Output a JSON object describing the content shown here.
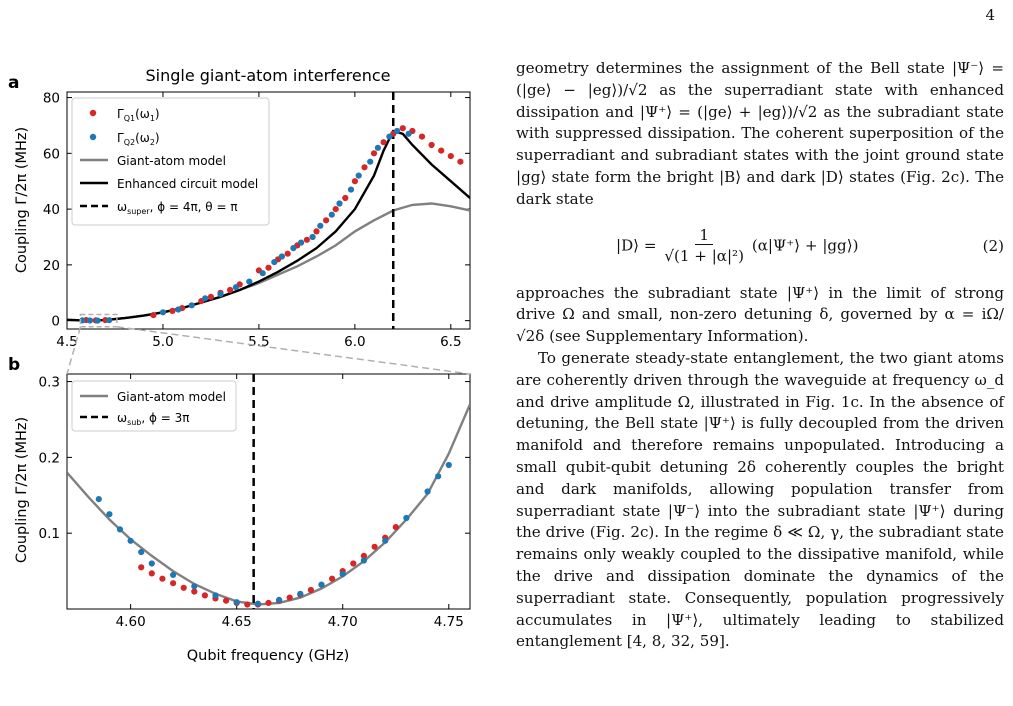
{
  "page_number": "4",
  "figure": {
    "panel_a": {
      "label": "a",
      "title": "Single giant-atom interference",
      "ylabel": "Coupling Γ/2π (MHz)",
      "legend": [
        "Γ_Q1(ω_1)",
        "Γ_Q2(ω_2)",
        "Giant-atom model",
        "Enhanced circuit model",
        "ω_super, ϕ = 4π, θ = π"
      ]
    },
    "panel_b": {
      "label": "b",
      "ylabel": "Coupling Γ/2π (MHz)",
      "xlabel": "Qubit frequency (GHz)",
      "legend": [
        "Giant-atom model",
        "ω_sub, ϕ = 3π"
      ]
    },
    "colors": {
      "q1": "#d62728",
      "q2": "#1f77b4",
      "giant_atom": "#808080",
      "enhanced": "#000000"
    }
  },
  "chart_data": [
    {
      "type": "scatter",
      "title": "Single giant-atom interference",
      "xlabel": "",
      "ylabel": "Coupling Γ/2π (MHz)",
      "xlim": [
        4.5,
        6.6
      ],
      "ylim": [
        -3,
        82
      ],
      "xticks": [
        4.5,
        5.0,
        5.5,
        6.0,
        6.5
      ],
      "yticks": [
        0,
        20,
        40,
        60,
        80
      ],
      "legend_position": "top-left",
      "series": [
        {
          "name": "Γ_Q1(ω_1)",
          "kind": "points",
          "x": [
            4.6,
            4.65,
            4.7,
            4.95,
            5.05,
            5.1,
            5.2,
            5.25,
            5.3,
            5.35,
            5.4,
            5.5,
            5.55,
            5.6,
            5.65,
            5.7,
            5.75,
            5.8,
            5.85,
            5.9,
            5.95,
            6.0,
            6.05,
            6.1,
            6.15,
            6.2,
            6.25,
            6.3,
            6.35,
            6.4,
            6.45,
            6.5,
            6.55
          ],
          "y": [
            0.2,
            0.1,
            0.2,
            2,
            3.5,
            4.5,
            7,
            8.5,
            10,
            11,
            13,
            18,
            19,
            22,
            24,
            27,
            29,
            32,
            36,
            40,
            44,
            50,
            55,
            60,
            64,
            67,
            69,
            68,
            66,
            63,
            61,
            59,
            57
          ]
        },
        {
          "name": "Γ_Q2(ω_2)",
          "kind": "points",
          "x": [
            4.58,
            4.62,
            4.66,
            4.72,
            5.0,
            5.08,
            5.15,
            5.22,
            5.3,
            5.38,
            5.45,
            5.52,
            5.58,
            5.62,
            5.68,
            5.72,
            5.78,
            5.82,
            5.88,
            5.92,
            5.98,
            6.02,
            6.08,
            6.12,
            6.18,
            6.22,
            6.28
          ],
          "y": [
            0.1,
            0.05,
            0.01,
            0.15,
            3,
            4,
            5.5,
            8,
            9.5,
            12,
            14,
            17,
            21,
            23,
            26,
            28,
            30,
            34,
            38,
            42,
            47,
            52,
            57,
            62,
            66,
            68,
            67
          ]
        },
        {
          "name": "Giant-atom model",
          "kind": "line",
          "x": [
            4.5,
            4.6,
            4.7,
            4.8,
            4.9,
            5.0,
            5.1,
            5.2,
            5.3,
            5.4,
            5.5,
            5.6,
            5.7,
            5.8,
            5.9,
            6.0,
            6.1,
            6.2,
            6.3,
            6.4,
            6.5,
            6.6
          ],
          "y": [
            0.3,
            0.02,
            0.2,
            0.9,
            1.8,
            3,
            4.5,
            6.5,
            8.5,
            11,
            13.5,
            16.5,
            19.5,
            23,
            27,
            32,
            36,
            39.5,
            41.5,
            42,
            41,
            39.5
          ]
        },
        {
          "name": "Enhanced circuit model",
          "kind": "line",
          "x": [
            4.5,
            4.6,
            4.7,
            4.8,
            4.9,
            5.0,
            5.1,
            5.2,
            5.3,
            5.4,
            5.5,
            5.6,
            5.7,
            5.8,
            5.9,
            6.0,
            6.1,
            6.15,
            6.2,
            6.25,
            6.3,
            6.4,
            6.5,
            6.6
          ],
          "y": [
            0.3,
            0.02,
            0.2,
            0.9,
            1.8,
            3,
            4.5,
            6.5,
            8.5,
            11,
            14,
            17.5,
            21.5,
            26,
            32,
            40,
            52,
            61,
            68,
            67,
            63,
            56,
            50,
            44
          ]
        },
        {
          "name": "ω_super, ϕ = 4π, θ = π",
          "kind": "vline",
          "x": 6.2
        }
      ]
    },
    {
      "type": "scatter",
      "xlabel": "Qubit frequency (GHz)",
      "ylabel": "Coupling Γ/2π (MHz)",
      "xlim": [
        4.57,
        4.76
      ],
      "ylim": [
        0,
        0.31
      ],
      "xticks": [
        4.6,
        4.65,
        4.7,
        4.75
      ],
      "yticks": [
        0.1,
        0.2,
        0.3
      ],
      "legend_position": "top-left",
      "series": [
        {
          "name": "Γ_Q1(ω_1)",
          "kind": "points",
          "x": [
            4.605,
            4.61,
            4.615,
            4.62,
            4.625,
            4.63,
            4.635,
            4.64,
            4.645,
            4.65,
            4.655,
            4.66,
            4.665,
            4.67,
            4.675,
            4.68,
            4.685,
            4.69,
            4.695,
            4.7,
            4.705,
            4.71,
            4.715,
            4.72,
            4.725
          ],
          "y": [
            0.055,
            0.047,
            0.04,
            0.034,
            0.028,
            0.023,
            0.018,
            0.014,
            0.011,
            0.008,
            0.006,
            0.006,
            0.008,
            0.011,
            0.015,
            0.019,
            0.025,
            0.032,
            0.04,
            0.05,
            0.06,
            0.07,
            0.082,
            0.094,
            0.108
          ]
        },
        {
          "name": "Γ_Q2(ω_2)",
          "kind": "points",
          "x": [
            4.585,
            4.59,
            4.595,
            4.6,
            4.605,
            4.61,
            4.62,
            4.63,
            4.64,
            4.65,
            4.66,
            4.67,
            4.68,
            4.69,
            4.7,
            4.71,
            4.72,
            4.73,
            4.74,
            4.745,
            4.75
          ],
          "y": [
            0.145,
            0.125,
            0.105,
            0.09,
            0.075,
            0.06,
            0.045,
            0.03,
            0.018,
            0.009,
            0.007,
            0.012,
            0.02,
            0.032,
            0.046,
            0.064,
            0.09,
            0.12,
            0.155,
            0.175,
            0.19
          ]
        },
        {
          "name": "Giant-atom model",
          "kind": "line",
          "x": [
            4.57,
            4.58,
            4.59,
            4.6,
            4.61,
            4.62,
            4.63,
            4.64,
            4.65,
            4.66,
            4.67,
            4.68,
            4.69,
            4.7,
            4.71,
            4.72,
            4.73,
            4.74,
            4.75,
            4.76
          ],
          "y": [
            0.18,
            0.148,
            0.118,
            0.092,
            0.07,
            0.05,
            0.033,
            0.02,
            0.01,
            0.006,
            0.008,
            0.015,
            0.027,
            0.043,
            0.063,
            0.088,
            0.118,
            0.152,
            0.205,
            0.27
          ]
        },
        {
          "name": "ω_sub, ϕ = 3π",
          "kind": "vline",
          "x": 4.658
        }
      ]
    }
  ],
  "text": {
    "p1": "geometry determines the assignment of the Bell state |Ψ⁻⟩ = (|ge⟩ − |eg⟩)/√2 as the superradiant state with enhanced dissipation and |Ψ⁺⟩ = (|ge⟩ + |eg⟩)/√2 as the subradiant state with suppressed dissipation. The coherent superposition of the superradiant and subradiant states with the joint ground state |gg⟩ state form the bright |B⟩ and dark |D⟩ states (Fig. 2c). The dark state",
    "eq_lhs": "|D⟩ =",
    "eq_num": "1",
    "eq_den": "√(1 + |α|²)",
    "eq_rhs": "(α|Ψ⁺⟩ + |gg⟩)",
    "eq_label": "(2)",
    "p2": "approaches the subradiant state |Ψ⁺⟩ in the limit of strong drive Ω and small, non-zero detuning δ, governed by α = iΩ/√2δ (see Supplementary Information).",
    "p3": "To generate steady-state entanglement, the two giant atoms are coherently driven through the waveguide at frequency ω_d and drive amplitude Ω, illustrated in Fig. 1c. In the absence of detuning, the Bell state |Ψ⁺⟩ is fully decoupled from the driven manifold and therefore remains unpopulated. Introducing a small qubit-qubit detuning 2δ coherently couples the bright and dark manifolds, allowing population transfer from superradiant state |Ψ⁻⟩ into the subradiant state |Ψ⁺⟩ during the drive (Fig. 2c). In the regime δ ≪ Ω, γ, the subradiant state remains only weakly coupled to the dissipative manifold, while the drive and dissipation dominate the dynamics of the superradiant state. Consequently, population progressively accumulates in |Ψ⁺⟩, ultimately leading to stabilized entanglement [4, 8, 32, 59]."
  }
}
